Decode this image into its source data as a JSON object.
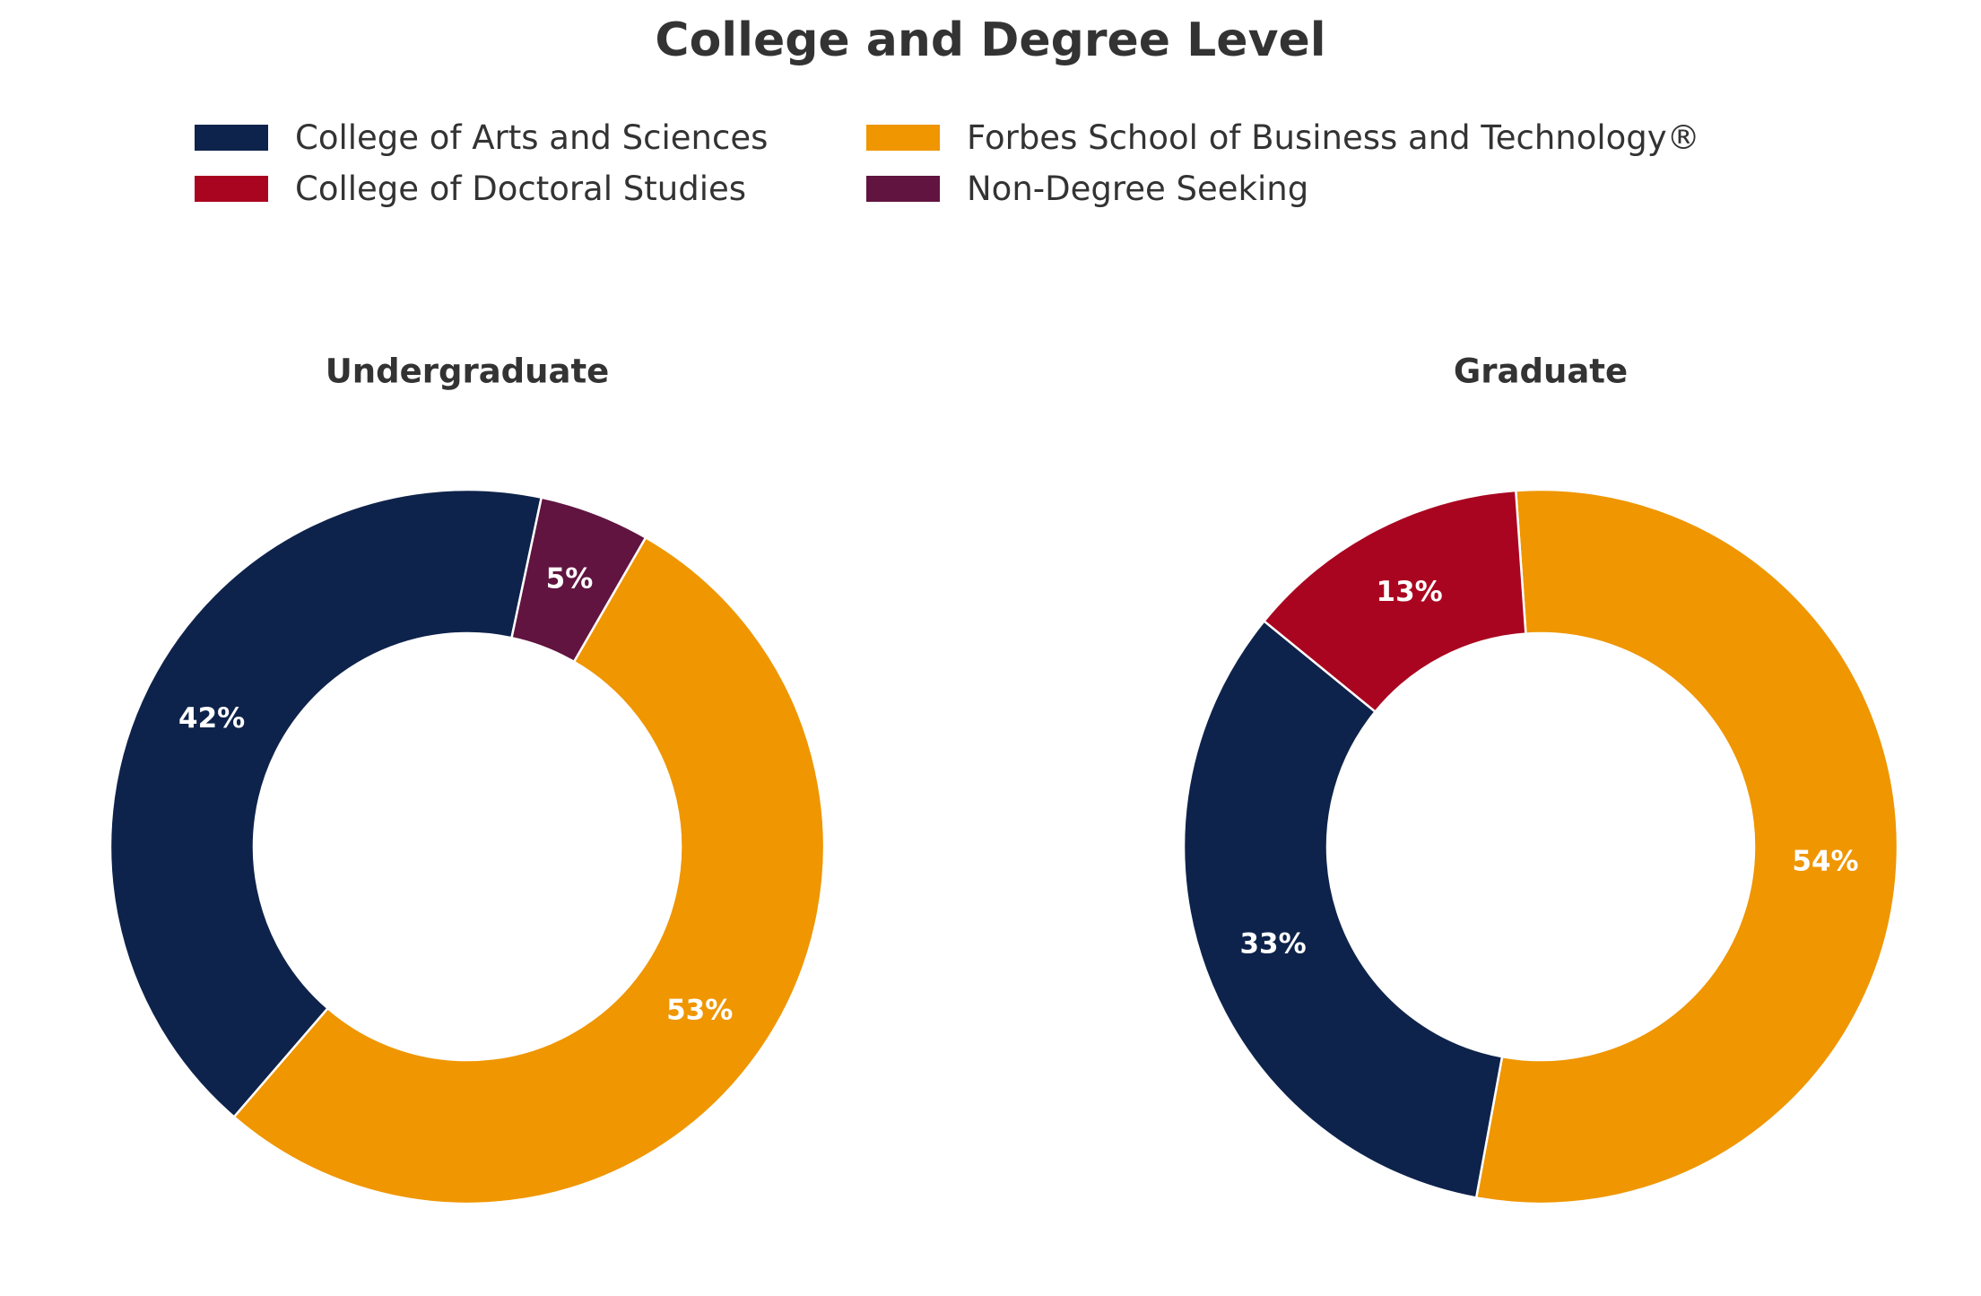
{
  "title": "College and Degree Level",
  "legend": [
    {
      "label": "College of Arts and Sciences",
      "color": "#0e234b"
    },
    {
      "label": "College of Doctoral Studies",
      "color": "#aa0520"
    },
    {
      "label": "Forbes School of Business and Technology®",
      "color": "#ef9600"
    },
    {
      "label": "Non-Degree Seeking",
      "color": "#611440"
    }
  ],
  "chart_data": [
    {
      "type": "pie",
      "subtype": "donut",
      "title": "Undergraduate",
      "slices": [
        {
          "label": "Forbes School of Business and Technology®",
          "value": 53,
          "display": "53%",
          "color": "#ef9600"
        },
        {
          "label": "College of Arts and Sciences",
          "value": 42,
          "display": "42%",
          "color": "#0e234b"
        },
        {
          "label": "Non-Degree Seeking",
          "value": 5,
          "display": "5%",
          "color": "#611440"
        }
      ]
    },
    {
      "type": "pie",
      "subtype": "donut",
      "title": "Graduate",
      "slices": [
        {
          "label": "Forbes School of Business and Technology®",
          "value": 54,
          "display": "54%",
          "color": "#ef9600"
        },
        {
          "label": "College of Arts and Sciences",
          "value": 33,
          "display": "33%",
          "color": "#0e234b"
        },
        {
          "label": "College of Doctoral Studies",
          "value": 13,
          "display": "13%",
          "color": "#aa0520"
        }
      ]
    }
  ]
}
